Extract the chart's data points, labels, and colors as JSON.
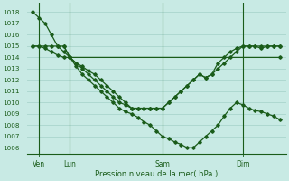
{
  "title": "Pression niveau de la mer( hPa )",
  "bg_color": "#c8eae4",
  "grid_color": "#aed8d0",
  "line_color": "#1a5c1a",
  "ylim": [
    1005.5,
    1018.8
  ],
  "yticks": [
    1006,
    1007,
    1008,
    1009,
    1010,
    1011,
    1012,
    1013,
    1014,
    1015,
    1016,
    1017,
    1018
  ],
  "xlim": [
    -0.5,
    20.5
  ],
  "xtick_positions": [
    0.5,
    3,
    10.5,
    17
  ],
  "xtick_labels": [
    "Ven",
    "Lun",
    "Sam",
    "Dim"
  ],
  "vlines": [
    0.5,
    3,
    10.5,
    17
  ],
  "line1_x": [
    0,
    0.5,
    1,
    1.5,
    2,
    2.5,
    3,
    3.5,
    4,
    4.5,
    5,
    5.5,
    6,
    6.5,
    7,
    7.5,
    8,
    8.5,
    9,
    9.5,
    10,
    10.5,
    11,
    11.5,
    12,
    12.5,
    13,
    13.5,
    14,
    14.5,
    15,
    15.5,
    16,
    16.5,
    17,
    17.5,
    18,
    18.5,
    19,
    19.5,
    20
  ],
  "line1_y": [
    1018,
    1017.5,
    1017,
    1016,
    1015,
    1014.5,
    1014,
    1013.2,
    1012.5,
    1012,
    1011.5,
    1011,
    1010.5,
    1010,
    1009.5,
    1009.2,
    1009,
    1008.7,
    1008.3,
    1008,
    1007.5,
    1007,
    1006.8,
    1006.5,
    1006.3,
    1006,
    1006,
    1006.5,
    1007,
    1007.5,
    1008,
    1008.8,
    1009.5,
    1010,
    1009.8,
    1009.5,
    1009.3,
    1009.2,
    1009,
    1008.8,
    1008.5
  ],
  "line2_x": [
    0,
    0.5,
    1,
    1.5,
    2,
    2.5,
    3,
    3.5,
    4,
    4.5,
    5,
    5.5,
    6,
    6.5,
    7,
    7.5,
    8,
    8.5,
    9,
    9.5,
    10,
    10.5,
    11,
    11.5,
    12,
    12.5,
    13,
    13.5,
    14,
    14.5,
    15,
    15.5,
    16,
    16.5,
    17,
    17.5,
    18,
    18.5,
    19,
    19.5,
    20
  ],
  "line2_y": [
    1015,
    1015,
    1014.8,
    1014.5,
    1014.2,
    1014,
    1014,
    1013.5,
    1013.2,
    1012.8,
    1012.5,
    1012,
    1011.5,
    1011,
    1010.5,
    1010,
    1009.5,
    1009.5,
    1009.5,
    1009.5,
    1009.5,
    1009.5,
    1010,
    1010.5,
    1011,
    1011.5,
    1012,
    1012.5,
    1012.2,
    1012.5,
    1013,
    1013.5,
    1014,
    1014.5,
    1015,
    1015,
    1015,
    1015,
    1015,
    1015,
    1015
  ],
  "line3_x": [
    0,
    0.5,
    1,
    1.5,
    2,
    2.5,
    3,
    20
  ],
  "line3_y": [
    1015,
    1015,
    1015,
    1015,
    1015,
    1015,
    1014,
    1014
  ],
  "line4_x": [
    2.5,
    3,
    3.5,
    4,
    4.5,
    5,
    5.5,
    6,
    6.5,
    7,
    7.5,
    8,
    8.5,
    9,
    9.5,
    10,
    10.5,
    11,
    11.5,
    12,
    12.5,
    13,
    13.5,
    14,
    14.5,
    15,
    15.5,
    16,
    16.5,
    17,
    17.5,
    18,
    18.5,
    19,
    19.5,
    20
  ],
  "line4_y": [
    1015,
    1014,
    1013.5,
    1013,
    1012.5,
    1012,
    1011.5,
    1011,
    1010.5,
    1010,
    1009.8,
    1009.5,
    1009.5,
    1009.5,
    1009.5,
    1009.5,
    1009.5,
    1010,
    1010.5,
    1011,
    1011.5,
    1012,
    1012.5,
    1012.2,
    1012.5,
    1013.5,
    1014,
    1014.5,
    1014.8,
    1015,
    1015,
    1015,
    1014.8,
    1015,
    1015,
    1015
  ]
}
